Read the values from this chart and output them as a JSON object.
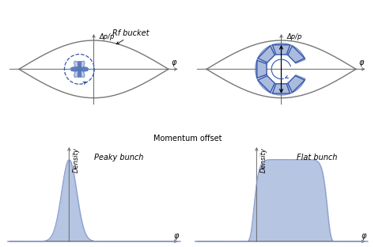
{
  "blue": "#3355aa",
  "blue_fill": "#5577bb",
  "blue_light": "#8899cc",
  "blue_very_light": "#aabbdd",
  "gray": "#666666",
  "gray_dark": "#333333",
  "rf_bucket_label": "Rf bucket",
  "momentum_offset_label": "Momentum offset",
  "peaky_bunch_label": "Peaky bunch",
  "flat_bunch_label": "Flat bunch",
  "delta_p_label": "Δp/p",
  "phi_label": "φ",
  "density_label": "Density",
  "bucket_a": 2.6,
  "bucket_b": 1.0,
  "eye_power": 0.5
}
